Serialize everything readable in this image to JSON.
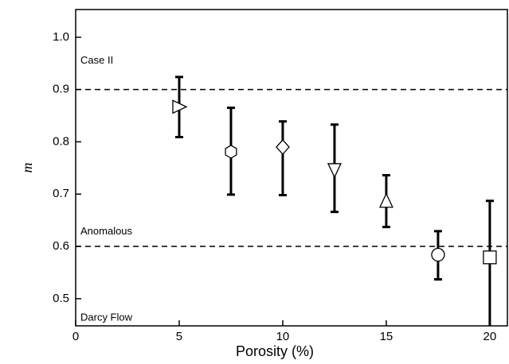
{
  "chart_data": {
    "type": "errorbar-scatter",
    "xlabel": "Porosity (%)",
    "ylabel": "m",
    "x": [
      5,
      7.5,
      10,
      12.5,
      15,
      17.5,
      20
    ],
    "values": [
      0.867,
      0.781,
      0.79,
      0.746,
      0.687,
      0.584,
      0.579
    ],
    "lower": [
      0.809,
      0.699,
      0.698,
      0.666,
      0.637,
      0.537,
      0.424
    ],
    "upper": [
      0.924,
      0.865,
      0.839,
      0.833,
      0.736,
      0.629,
      0.687
    ],
    "markers": [
      "triangle-right",
      "hexagon",
      "diamond",
      "triangle-down",
      "triangle-up",
      "circle",
      "square"
    ],
    "color": "#000000",
    "hlines": [
      0.9,
      0.6
    ],
    "annotations": [
      "Case II",
      "Anomalous",
      "Darcy Flow"
    ],
    "xlim": [
      0,
      20.85
    ],
    "xticks": [
      0,
      5,
      10,
      15,
      20
    ],
    "ylim": [
      0.448,
      1.053
    ],
    "yticks": [
      {
        "value": 0.5,
        "label": "0.5"
      },
      {
        "value": 0.6,
        "label": "0.6"
      },
      {
        "value": 0.7,
        "label": "0.7"
      },
      {
        "value": 0.8,
        "label": "0.8"
      },
      {
        "value": 0.9,
        "label": "0.9"
      },
      {
        "value": 1.0,
        "label": "1.0"
      }
    ]
  }
}
